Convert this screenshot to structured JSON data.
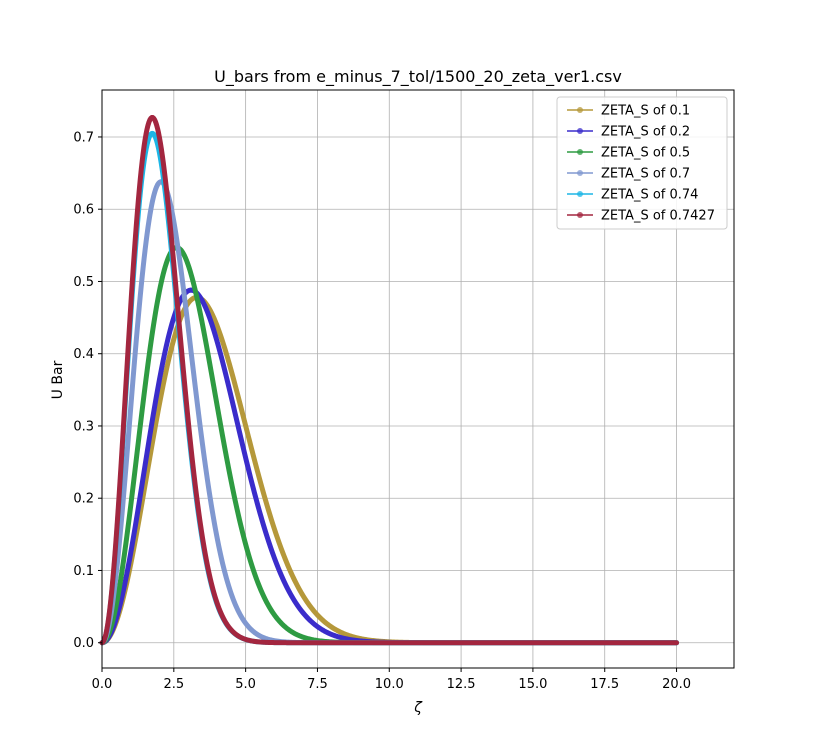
{
  "chart_data": {
    "type": "line",
    "title": "U_bars from e_minus_7_tol/1500_20_zeta_ver1.csv",
    "xlabel": "ζ",
    "ylabel": "U Bar",
    "xlim": [
      0,
      22
    ],
    "ylim": [
      -0.035,
      0.765
    ],
    "xticks": [
      0,
      2.5,
      5,
      7.5,
      10,
      12.5,
      15,
      17.5,
      20
    ],
    "xtick_labels": [
      "0.0",
      "2.5",
      "5.0",
      "7.5",
      "10.0",
      "12.5",
      "15.0",
      "17.5",
      "20.0"
    ],
    "yticks": [
      0,
      0.1,
      0.2,
      0.3,
      0.4,
      0.5,
      0.6,
      0.7
    ],
    "ytick_labels": [
      "0.0",
      "0.1",
      "0.2",
      "0.3",
      "0.4",
      "0.5",
      "0.6",
      "0.7"
    ],
    "grid": true,
    "legend_position": "top-right",
    "x_range": [
      0,
      20
    ],
    "series": [
      {
        "name": "ZETA_S of 0.1",
        "color": "#b5983a",
        "peak_x": 3.3,
        "peak_y": 0.478
      },
      {
        "name": "ZETA_S of 0.2",
        "color": "#3a2ccb",
        "peak_x": 3.1,
        "peak_y": 0.488
      },
      {
        "name": "ZETA_S of 0.5",
        "color": "#2e9b42",
        "peak_x": 2.6,
        "peak_y": 0.547
      },
      {
        "name": "ZETA_S of 0.7",
        "color": "#8098d0",
        "peak_x": 2.05,
        "peak_y": 0.638
      },
      {
        "name": "ZETA_S of 0.74",
        "color": "#1cb6e6",
        "peak_x": 1.75,
        "peak_y": 0.705
      },
      {
        "name": "ZETA_S of 0.7427",
        "color": "#a3263f",
        "peak_x": 1.75,
        "peak_y": 0.727
      }
    ]
  }
}
